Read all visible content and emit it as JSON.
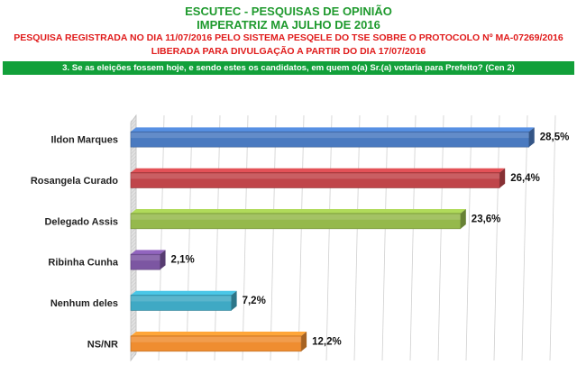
{
  "header": {
    "title": "ESCUTEC - PESQUISAS DE OPINIÃO",
    "subtitle": "IMPERATRIZ MA JULHO DE 2016",
    "registration": "PESQUISA REGISTRADA NO DIA 11/07/2016 PELO SISTEMA PESQELE DO TSE SOBRE O PROTOCOLO Nº MA-07269/2016",
    "release": "LIBERADA PARA DIVULGAÇÃO A PARTIR DO DIA 17/07/2016"
  },
  "question": "3. Se as eleições fossem hoje, e sendo estes os candidatos, em quem o(a) Sr.(a) votaria para Prefeito? (Cen 2)",
  "chart_data": {
    "type": "bar",
    "orientation": "horizontal",
    "categories": [
      "Ildon Marques",
      "Rosangela Curado",
      "Delegado Assis",
      "Ribinha Cunha",
      "Nenhum deles",
      "NS/NR"
    ],
    "values": [
      28.5,
      26.4,
      23.6,
      2.1,
      7.2,
      12.2
    ],
    "value_labels": [
      "28,5%",
      "26,4%",
      "23,6%",
      "2,1%",
      "7,2%",
      "12,2%"
    ],
    "bar_colors": [
      "#4a7ac0",
      "#c0454a",
      "#95b94c",
      "#7c56a2",
      "#3fa9c4",
      "#ef8d30"
    ],
    "xlim": [
      0,
      30
    ],
    "grid": true,
    "legend": "none"
  }
}
